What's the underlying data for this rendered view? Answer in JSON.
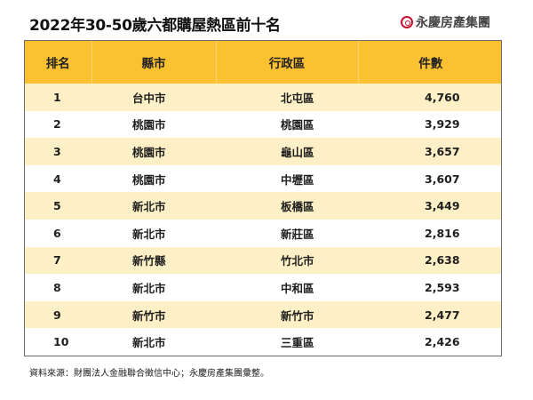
{
  "header": {
    "title": "2022年30-50歲六都購屋熱區前十名",
    "brand": "永慶房產集團"
  },
  "table": {
    "columns": [
      "排名",
      "縣市",
      "行政區",
      "件數"
    ],
    "rows": [
      {
        "rank": "1",
        "city": "台中市",
        "district": "北屯區",
        "count": "4,760"
      },
      {
        "rank": "2",
        "city": "桃園市",
        "district": "桃園區",
        "count": "3,929"
      },
      {
        "rank": "3",
        "city": "桃園市",
        "district": "龜山區",
        "count": "3,657"
      },
      {
        "rank": "4",
        "city": "桃園市",
        "district": "中壢區",
        "count": "3,607"
      },
      {
        "rank": "5",
        "city": "新北市",
        "district": "板橋區",
        "count": "3,449"
      },
      {
        "rank": "6",
        "city": "新北市",
        "district": "新莊區",
        "count": "2,816"
      },
      {
        "rank": "7",
        "city": "新竹縣",
        "district": "竹北市",
        "count": "2,638"
      },
      {
        "rank": "8",
        "city": "新北市",
        "district": "中和區",
        "count": "2,593"
      },
      {
        "rank": "9",
        "city": "新竹市",
        "district": "新竹市",
        "count": "2,477"
      },
      {
        "rank": "10",
        "city": "新北市",
        "district": "三重區",
        "count": "2,426"
      }
    ]
  },
  "footer": {
    "source": "資料來源：財團法人金融聯合徵信中心；永慶房產集團彙整。"
  },
  "colors": {
    "header_bg": "#fcc131",
    "row_alt_bg": "#fdefc6",
    "brand_red": "#c8102e"
  }
}
